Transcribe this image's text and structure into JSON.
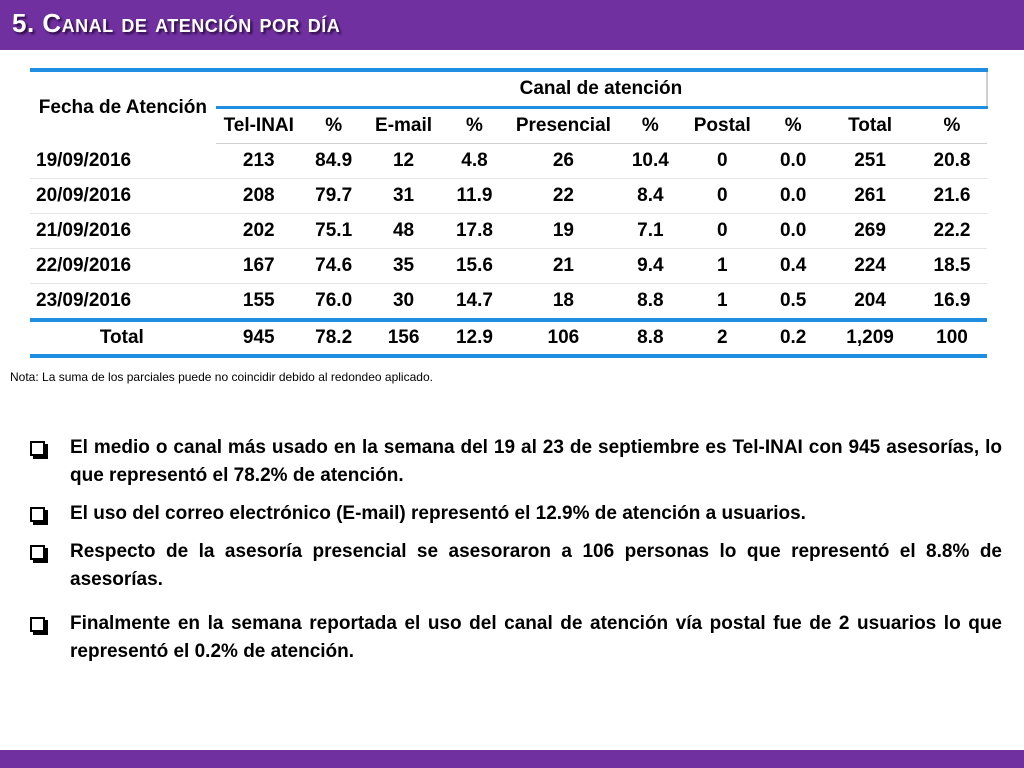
{
  "slide": {
    "title": "5. Canal de atención por día"
  },
  "table": {
    "fecha_header": "Fecha de Atención",
    "group_header": "Canal de atención",
    "columns": [
      "Tel-INAI",
      "%",
      "E-mail",
      "%",
      "Presencial",
      "%",
      "Postal",
      "%",
      "Total",
      "%"
    ],
    "rows": [
      [
        "19/09/2016",
        "213",
        "84.9",
        "12",
        "4.8",
        "26",
        "10.4",
        "0",
        "0.0",
        "251",
        "20.8"
      ],
      [
        "20/09/2016",
        "208",
        "79.7",
        "31",
        "11.9",
        "22",
        "8.4",
        "0",
        "0.0",
        "261",
        "21.6"
      ],
      [
        "21/09/2016",
        "202",
        "75.1",
        "48",
        "17.8",
        "19",
        "7.1",
        "0",
        "0.0",
        "269",
        "22.2"
      ],
      [
        "22/09/2016",
        "167",
        "74.6",
        "35",
        "15.6",
        "21",
        "9.4",
        "1",
        "0.4",
        "224",
        "18.5"
      ],
      [
        "23/09/2016",
        "155",
        "76.0",
        "30",
        "14.7",
        "18",
        "8.8",
        "1",
        "0.5",
        "204",
        "16.9"
      ]
    ],
    "total_row": [
      "Total",
      "945",
      "78.2",
      "156",
      "12.9",
      "106",
      "8.8",
      "2",
      "0.2",
      "1,209",
      "100"
    ]
  },
  "note": "Nota: La suma de los parciales puede no coincidir debido al redondeo aplicado.",
  "bullets": [
    "El medio o canal más usado en la semana del 19 al 23 de septiembre es Tel-INAI con 945 asesorías, lo que representó el 78.2% de atención.",
    "El uso del correo electrónico (E-mail) representó el 12.9% de atención a usuarios.",
    "Respecto de la asesoría presencial se asesoraron a 106 personas lo que representó el 8.8% de asesorías.",
    "Finalmente en la semana reportada el uso del canal de atención vía postal fue de 2 usuarios lo que representó el 0.2% de atención."
  ],
  "colors": {
    "accent_purple": "#7030a0",
    "table_rule_blue": "#1f8ee0"
  }
}
